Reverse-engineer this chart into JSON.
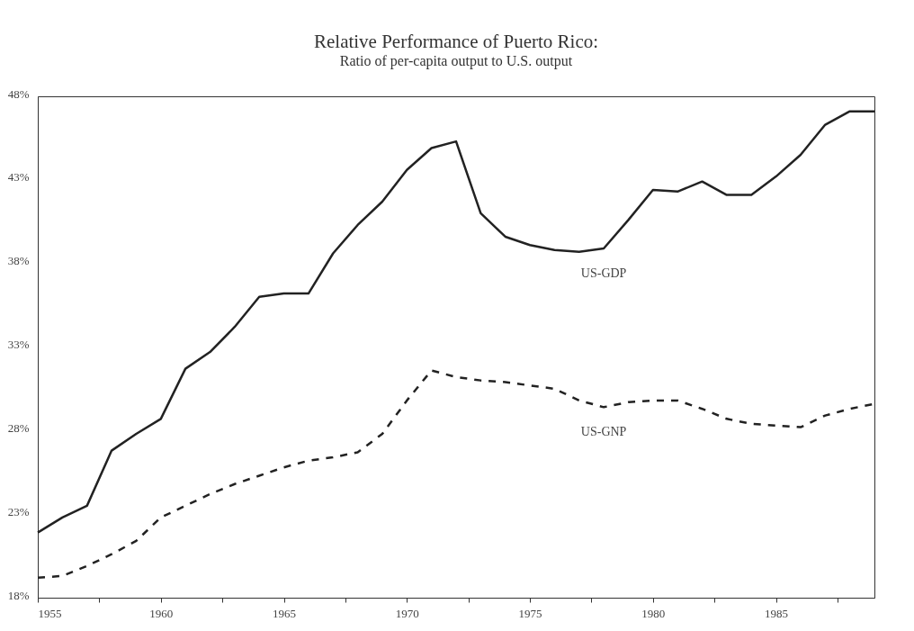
{
  "chart_data": {
    "type": "line",
    "title": "Relative Performance of Puerto Rico:",
    "subtitle": "Ratio of per-capita output to U.S. output",
    "x": [
      1955,
      1956,
      1957,
      1958,
      1959,
      1960,
      1961,
      1962,
      1963,
      1964,
      1965,
      1966,
      1967,
      1968,
      1969,
      1970,
      1971,
      1972,
      1973,
      1974,
      1975,
      1976,
      1977,
      1978,
      1979,
      1980,
      1981,
      1982,
      1983,
      1984,
      1985,
      1986,
      1987,
      1988,
      1989
    ],
    "series": [
      {
        "name": "US-GDP",
        "color": "#222222",
        "line_style": "solid",
        "values": [
          21.9,
          22.8,
          23.5,
          26.8,
          27.8,
          28.7,
          31.7,
          32.7,
          34.2,
          36.0,
          36.2,
          36.2,
          38.6,
          40.3,
          41.7,
          43.6,
          44.9,
          45.3,
          41.0,
          39.6,
          39.1,
          38.8,
          38.7,
          38.9,
          40.6,
          42.4,
          42.3,
          42.9,
          42.1,
          42.1,
          43.2,
          44.5,
          46.3,
          47.1,
          47.1
        ]
      },
      {
        "name": "US-GNP",
        "color": "#222222",
        "line_style": "dashed",
        "values": [
          19.2,
          19.3,
          19.9,
          20.6,
          21.4,
          22.8,
          23.5,
          24.2,
          24.8,
          25.3,
          25.8,
          26.2,
          26.4,
          26.7,
          27.8,
          29.8,
          31.6,
          31.2,
          31.0,
          30.9,
          30.7,
          30.5,
          29.8,
          29.4,
          29.7,
          29.8,
          29.8,
          29.3,
          28.7,
          28.4,
          28.3,
          28.2,
          28.9,
          29.3,
          29.6
        ]
      }
    ],
    "xlim": [
      1955,
      1989
    ],
    "xticks": [
      1955,
      {
        "value": 1957.5,
        "label": null
      },
      1960,
      {
        "value": 1962.5,
        "label": null
      },
      1965,
      {
        "value": 1967.5,
        "label": null
      },
      1970,
      {
        "value": 1972.5,
        "label": null
      },
      1975,
      {
        "value": 1977.5,
        "label": null
      },
      1980,
      {
        "value": 1982.5,
        "label": null
      },
      1985,
      {
        "value": 1987.5,
        "label": null
      }
    ],
    "ylim": [
      18,
      48
    ],
    "yticks": [
      {
        "value": 18,
        "label": "18%"
      },
      {
        "value": 23,
        "label": "23%"
      },
      {
        "value": 28,
        "label": "28%"
      },
      {
        "value": 33,
        "label": "33%"
      },
      {
        "value": 38,
        "label": "38%"
      },
      {
        "value": 43,
        "label": "43%"
      },
      {
        "value": 48,
        "label": "48%"
      }
    ],
    "grid": false,
    "legend": false
  }
}
